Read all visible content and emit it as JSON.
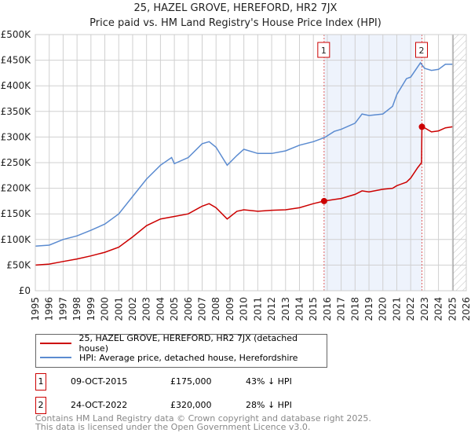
{
  "title": "25, HAZEL GROVE, HEREFORD, HR2 7JX",
  "subtitle": "Price paid vs. HM Land Registry's House Price Index (HPI)",
  "chart_data": {
    "type": "line",
    "title": "25, HAZEL GROVE, HEREFORD, HR2 7JX",
    "subtitle": "Price paid vs. HM Land Registry's House Price Index (HPI)",
    "xlim": [
      1995,
      2026
    ],
    "ylim": [
      0,
      500000
    ],
    "x_ticks": [
      "1995",
      "1996",
      "1997",
      "1998",
      "1999",
      "2000",
      "2001",
      "2002",
      "2003",
      "2004",
      "2005",
      "2006",
      "2007",
      "2008",
      "2009",
      "2010",
      "2011",
      "2012",
      "2013",
      "2014",
      "2015",
      "2016",
      "2017",
      "2018",
      "2019",
      "2020",
      "2021",
      "2022",
      "2023",
      "2024",
      "2025",
      "2026"
    ],
    "y_ticks": [
      {
        "v": 0,
        "label": "£0"
      },
      {
        "v": 50000,
        "label": "£50K"
      },
      {
        "v": 100000,
        "label": "£100K"
      },
      {
        "v": 150000,
        "label": "£150K"
      },
      {
        "v": 200000,
        "label": "£200K"
      },
      {
        "v": 250000,
        "label": "£250K"
      },
      {
        "v": 300000,
        "label": "£300K"
      },
      {
        "v": 350000,
        "label": "£350K"
      },
      {
        "v": 400000,
        "label": "£400K"
      },
      {
        "v": 450000,
        "label": "£450K"
      },
      {
        "v": 500000,
        "label": "£500K"
      }
    ],
    "grid": true,
    "shaded_period": [
      2015.77,
      2022.81
    ],
    "forecast_hatch_from": 2025.05,
    "series": [
      {
        "name": "25, HAZEL GROVE, HEREFORD, HR2 7JX (detached house)",
        "color": "#cc0000",
        "x": [
          1995,
          1996,
          1997,
          1998,
          1999,
          2000,
          2001,
          2002,
          2003,
          2004,
          2005,
          2006,
          2007,
          2007.5,
          2008,
          2008.8,
          2009.5,
          2010,
          2011,
          2012,
          2013,
          2014,
          2015,
          2015.77,
          2016.5,
          2017,
          2018,
          2018.5,
          2019,
          2020,
          2020.7,
          2021,
          2021.7,
          2022,
          2022.5,
          2022.78,
          2022.81,
          2023,
          2023.5,
          2024,
          2024.5,
          2025
        ],
        "y": [
          50000,
          52000,
          57000,
          62000,
          68000,
          75000,
          85000,
          105000,
          127000,
          140000,
          145000,
          150000,
          165000,
          170000,
          162000,
          140000,
          155000,
          158000,
          155000,
          157000,
          158000,
          162000,
          170000,
          175000,
          178000,
          180000,
          188000,
          195000,
          193000,
          198000,
          200000,
          205000,
          212000,
          220000,
          240000,
          250000,
          320000,
          318000,
          310000,
          312000,
          318000,
          320000
        ]
      },
      {
        "name": "HPI: Average price, detached house, Herefordshire",
        "color": "#5b8bd0",
        "x": [
          1995,
          1996,
          1997,
          1998,
          1999,
          2000,
          2001,
          2002,
          2003,
          2004,
          2004.8,
          2005,
          2006,
          2007,
          2007.5,
          2008,
          2008.8,
          2009.5,
          2010,
          2011,
          2012,
          2013,
          2014,
          2015,
          2015.8,
          2016.5,
          2017,
          2018,
          2018.5,
          2019,
          2020,
          2020.7,
          2021,
          2021.7,
          2022,
          2022.7,
          2023,
          2023.5,
          2024,
          2024.5,
          2025
        ],
        "y": [
          87000,
          89000,
          100000,
          107000,
          118000,
          130000,
          150000,
          184000,
          218000,
          245000,
          260000,
          248000,
          260000,
          287000,
          291000,
          280000,
          245000,
          264000,
          276000,
          268000,
          268000,
          273000,
          284000,
          291000,
          299000,
          311000,
          315000,
          327000,
          345000,
          342000,
          345000,
          360000,
          383000,
          414000,
          417000,
          445000,
          434000,
          430000,
          432000,
          442000,
          442000
        ]
      }
    ],
    "annotations": [
      {
        "label": "1",
        "x": 2015.77,
        "y": 175000
      },
      {
        "label": "2",
        "x": 2022.81,
        "y": 320000
      }
    ]
  },
  "legend": {
    "items": [
      {
        "label": "25, HAZEL GROVE, HEREFORD, HR2 7JX (detached house)",
        "color": "#cc0000"
      },
      {
        "label": "HPI: Average price, detached house, Herefordshire",
        "color": "#5b8bd0"
      }
    ]
  },
  "transactions": [
    {
      "num": "1",
      "date": "09-OCT-2015",
      "price": "£175,000",
      "hpi": "43% ↓ HPI"
    },
    {
      "num": "2",
      "date": "24-OCT-2022",
      "price": "£320,000",
      "hpi": "28% ↓ HPI"
    }
  ],
  "footer": {
    "line1": "Contains HM Land Registry data © Crown copyright and database right 2025.",
    "line2": "This data is licensed under the Open Government Licence v3.0."
  }
}
